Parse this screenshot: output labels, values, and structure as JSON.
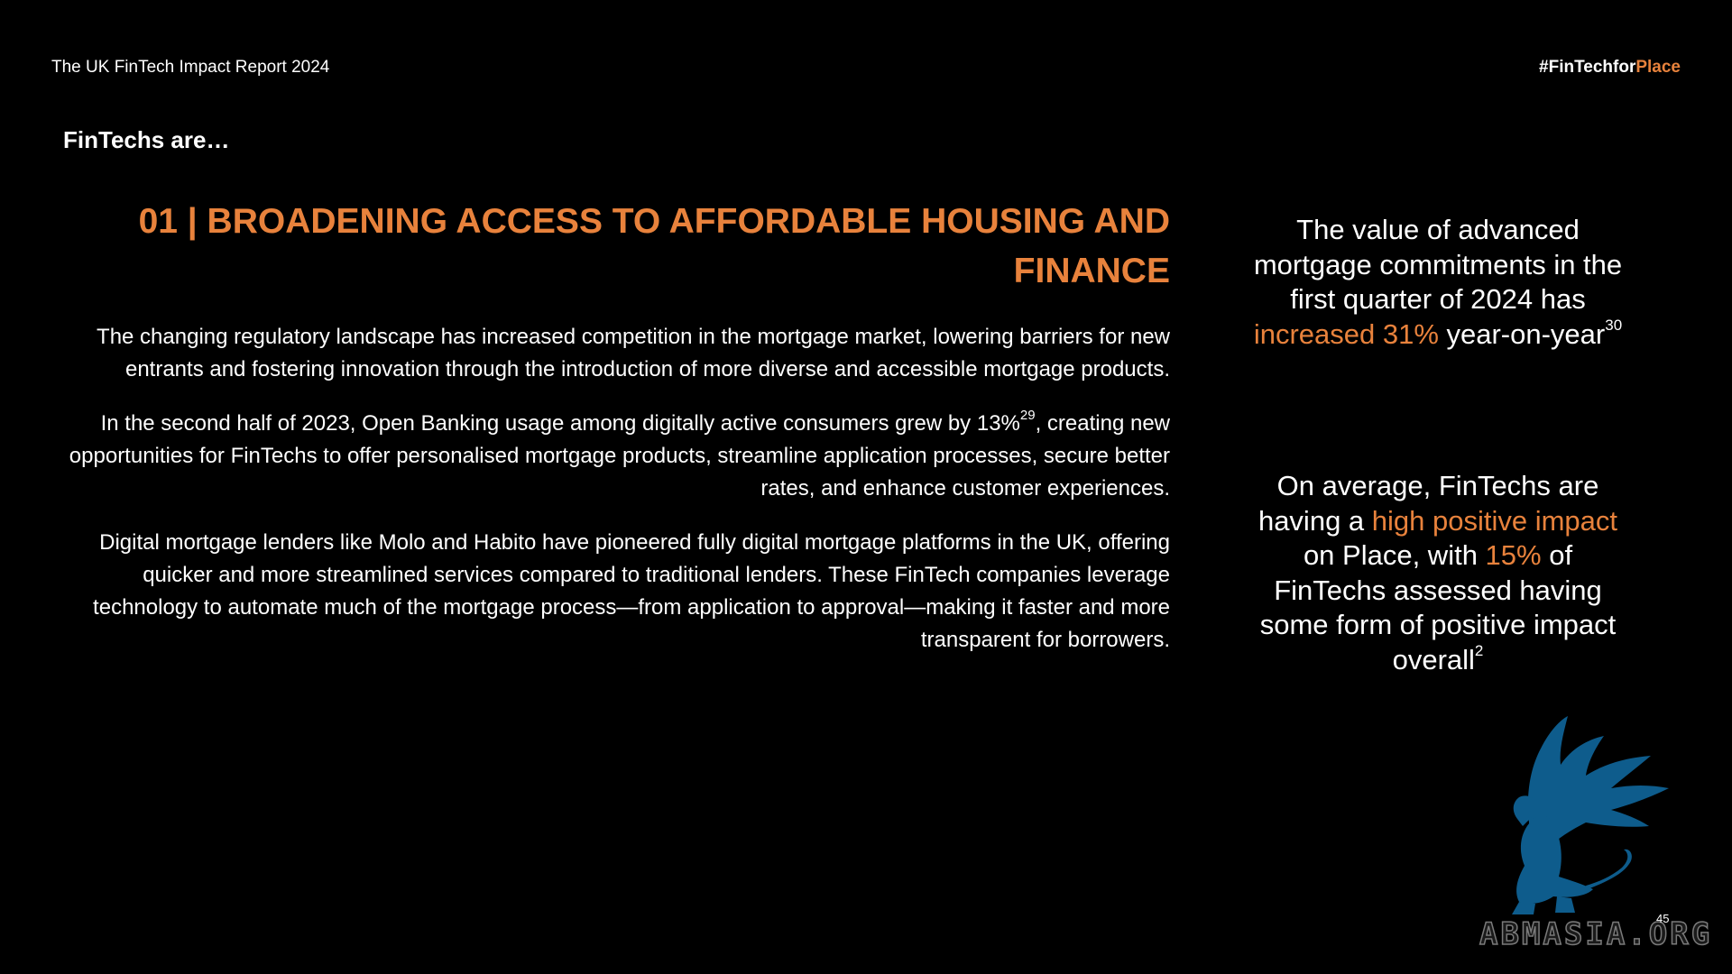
{
  "header": {
    "report_title": "The UK FinTech Impact Report 2024",
    "hashtag_prefix": "#FinTechfor",
    "hashtag_accent": "Place"
  },
  "intro": "FinTechs are…",
  "section": {
    "heading": "01 | BROADENING ACCESS TO AFFORDABLE HOUSING AND FINANCE",
    "paragraph1": "The changing regulatory landscape has increased competition in the mortgage market, lowering barriers for new entrants and fostering innovation through the introduction of more diverse and accessible mortgage products.",
    "paragraph2_a": "In the second half of 2023, Open Banking usage among digitally active consumers grew by 13%",
    "paragraph2_ref": "29",
    "paragraph2_b": ", creating new opportunities for FinTechs to offer personalised mortgage products, streamline application processes, secure better rates, and enhance customer experiences.",
    "paragraph3": "Digital mortgage lenders like Molo and Habito have pioneered fully digital mortgage platforms in the UK, offering quicker and more streamlined services compared to traditional lenders. These FinTech companies leverage technology to automate much of the mortgage process—from application to approval—making it faster and more transparent for borrowers."
  },
  "stat1": {
    "text_a": "The value of advanced mortgage commitments in the first quarter of 2024 has ",
    "highlight": "increased 31%",
    "text_b": " year-on-year",
    "ref": "30"
  },
  "stat2": {
    "text_a": "On average, FinTechs are having a ",
    "highlight1": "high positive impact",
    "text_b": " on Place, with ",
    "highlight2": "15%",
    "text_c": " of FinTechs assessed having some form of positive impact overall",
    "ref": "2"
  },
  "page_number": "45",
  "watermark_text": "ABMASIA.ORG",
  "colors": {
    "accent": "#E8823C",
    "background": "#000000",
    "text": "#ffffff",
    "watermark": "#0E5C8C"
  }
}
